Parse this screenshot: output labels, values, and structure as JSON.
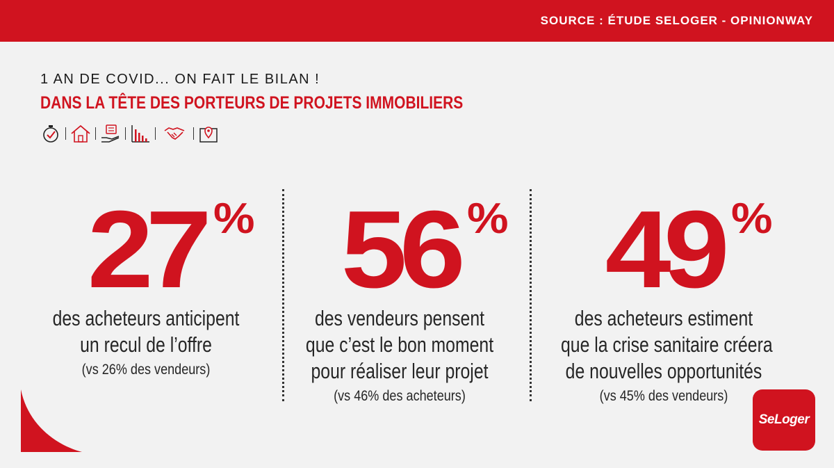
{
  "header": {
    "source": "SOURCE : ÉTUDE SELOGER - OPINIONWAY"
  },
  "title": {
    "kicker": "1 AN DE COVID... ON FAIT LE BILAN !",
    "headline": "DANS LA TÊTE DES PORTEURS DE PROJETS IMMOBILIERS"
  },
  "icons": [
    "stopwatch-icon",
    "house-icon",
    "hand-money-icon",
    "bar-chart-icon",
    "handshake-icon",
    "map-pin-icon"
  ],
  "stats": [
    {
      "value": "27",
      "unit": "%",
      "line1": "des acheteurs anticipent",
      "line2": "un recul de l’offre",
      "line3": "",
      "note": "(vs 26% des vendeurs)"
    },
    {
      "value": "56",
      "unit": "%",
      "line1": "des vendeurs pensent",
      "line2": "que c’est le bon moment",
      "line3": "pour réaliser leur projet",
      "note": "(vs 46% des acheteurs)"
    },
    {
      "value": "49",
      "unit": "%",
      "line1": "des acheteurs estiment",
      "line2": "que la crise sanitaire créera",
      "line3": "de nouvelles opportunités",
      "note": "(vs 45% des vendeurs)"
    }
  ],
  "logo": {
    "text": "SeLoger"
  },
  "colors": {
    "brand_red": "#d0131f",
    "background": "#f2f2f2",
    "text": "#262626"
  }
}
